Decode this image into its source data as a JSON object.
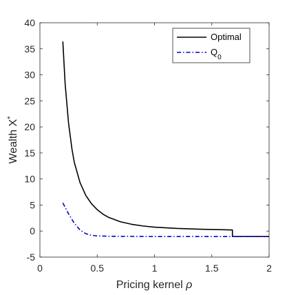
{
  "chart_data": {
    "type": "line",
    "xlabel": "Pricing kernel ρ",
    "ylabel": "Wealth X*",
    "xlim": [
      0,
      2
    ],
    "ylim": [
      -5,
      40
    ],
    "xticks": [
      "0",
      "0.5",
      "1",
      "1.5",
      "2"
    ],
    "xtick_values": [
      0,
      0.5,
      1,
      1.5,
      2
    ],
    "yticks": [
      "-5",
      "0",
      "5",
      "10",
      "15",
      "20",
      "25",
      "30",
      "35",
      "40"
    ],
    "ytick_values": [
      -5,
      0,
      5,
      10,
      15,
      20,
      25,
      30,
      35,
      40
    ],
    "grid": false,
    "legend_position": "top-right",
    "series": [
      {
        "name": "Optimal",
        "color": "#000000",
        "style": "solid",
        "x": [
          0.2,
          0.22,
          0.25,
          0.28,
          0.3,
          0.35,
          0.4,
          0.45,
          0.5,
          0.55,
          0.6,
          0.7,
          0.8,
          0.9,
          1.0,
          1.2,
          1.4,
          1.6,
          1.68,
          1.68,
          1.75,
          2.0
        ],
        "y": [
          36.4,
          28.3,
          20.7,
          15.7,
          13.2,
          9.3,
          6.85,
          5.25,
          4.1,
          3.25,
          2.62,
          1.8,
          1.3,
          0.97,
          0.75,
          0.5,
          0.35,
          0.25,
          0.2,
          -1.05,
          -1.05,
          -1.05
        ]
      },
      {
        "name": "Q",
        "name_subscript": "0",
        "color": "#0000cc",
        "style": "dash-dot",
        "x": [
          0.2,
          0.25,
          0.3,
          0.35,
          0.4,
          0.45,
          0.5,
          0.6,
          0.8,
          1.0,
          1.5,
          2.0
        ],
        "y": [
          5.4,
          3.3,
          1.5,
          0.2,
          -0.5,
          -0.82,
          -0.93,
          -1.0,
          -1.03,
          -1.05,
          -1.05,
          -1.05
        ]
      }
    ]
  }
}
